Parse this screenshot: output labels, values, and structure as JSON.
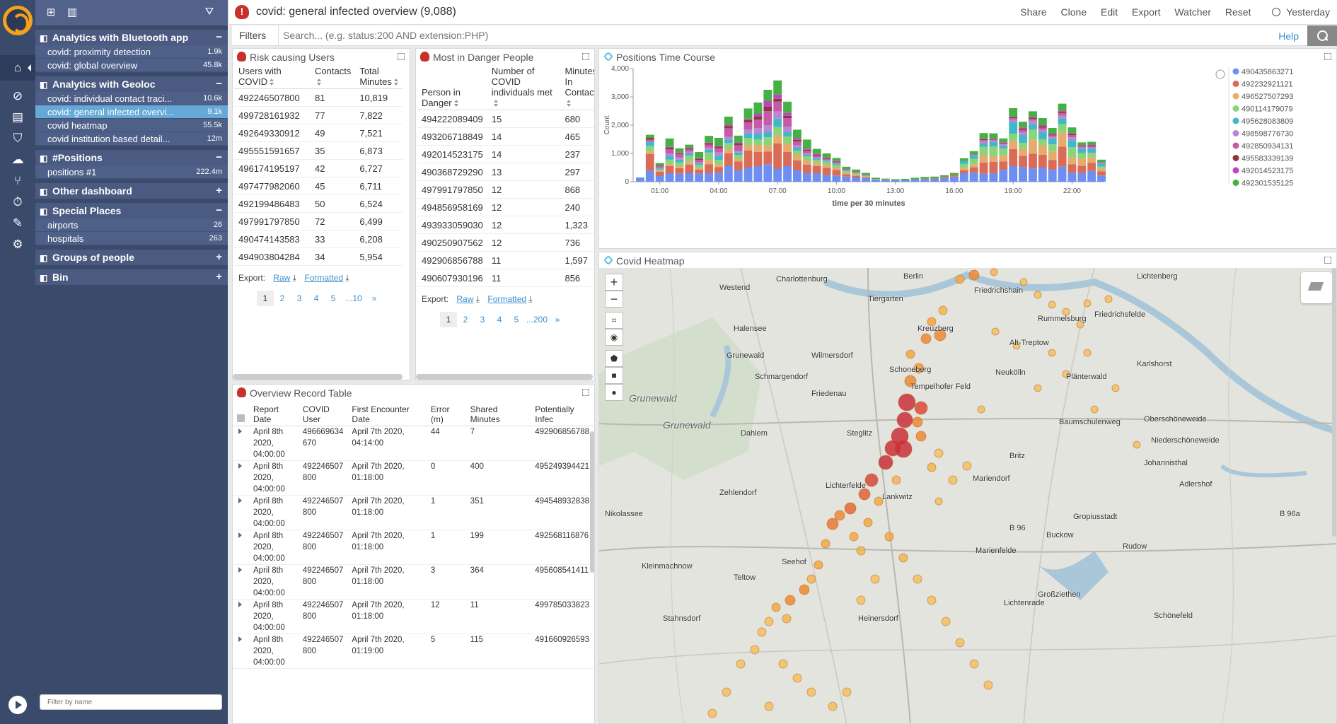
{
  "topbar": {
    "title": "covid: general infected overview (9,088)",
    "actions": [
      "Share",
      "Clone",
      "Edit",
      "Export",
      "Watcher",
      "Reset"
    ],
    "time": "Yesterday"
  },
  "filterbar": {
    "label": "Filters",
    "placeholder": "Search... (e.g. status:200 AND extension:PHP)",
    "help": "Help"
  },
  "sidebar": {
    "filter_placeholder": "Filter by name",
    "groups": [
      {
        "title": "Analytics with Bluetooth app",
        "toggle": "−",
        "items": [
          {
            "label": "covid: proximity detection",
            "count": "1.9k"
          },
          {
            "label": "covid: global overview",
            "count": "45.8k"
          }
        ]
      },
      {
        "title": "Analytics with Geoloc",
        "toggle": "−",
        "items": [
          {
            "label": "covid: individual contact traci...",
            "count": "10.6k"
          },
          {
            "label": "covid: general infected overvi...",
            "count": "9.1k"
          },
          {
            "label": "covid heatmap",
            "count": "55.5k"
          },
          {
            "label": "covid institution based detail...",
            "count": "12m"
          }
        ]
      },
      {
        "title": "#Positions",
        "toggle": "−",
        "items": [
          {
            "label": "positions #1",
            "count": "222.4m"
          }
        ]
      },
      {
        "title": "Other dashboard",
        "toggle": "+",
        "items": []
      },
      {
        "title": "Special Places",
        "toggle": "−",
        "items": [
          {
            "label": "airports",
            "count": "26"
          },
          {
            "label": "hospitals",
            "count": "263"
          }
        ]
      },
      {
        "title": "Groups of people",
        "toggle": "+",
        "items": []
      },
      {
        "title": "Bin",
        "toggle": "+",
        "items": []
      }
    ]
  },
  "risk_users": {
    "title": "Risk causing Users",
    "headers": [
      "Users with COVID",
      "Contacts",
      "Total Minutes"
    ],
    "rows": [
      [
        "492246507800",
        "81",
        "10,819"
      ],
      [
        "499728161932",
        "77",
        "7,822"
      ],
      [
        "492649330912",
        "49",
        "7,521"
      ],
      [
        "495551591657",
        "35",
        "6,873"
      ],
      [
        "496174195197",
        "42",
        "6,727"
      ],
      [
        "497477982060",
        "45",
        "6,711"
      ],
      [
        "492199486483",
        "50",
        "6,524"
      ],
      [
        "497991797850",
        "72",
        "6,499"
      ],
      [
        "490474143583",
        "33",
        "6,208"
      ],
      [
        "494903804284",
        "34",
        "5,954"
      ]
    ],
    "export_label": "Export:",
    "raw": "Raw",
    "formatted": "Formatted",
    "pages": [
      "1",
      "2",
      "3",
      "4",
      "5",
      "...10",
      "»"
    ]
  },
  "danger_people": {
    "title": "Most in Danger People",
    "headers": [
      "Person in Danger",
      "Number of COVID individuals met",
      "Minutes In Contact"
    ],
    "rows": [
      [
        "494222089409",
        "15",
        "680"
      ],
      [
        "493206718849",
        "14",
        "465"
      ],
      [
        "492014523175",
        "14",
        "237"
      ],
      [
        "490368729290",
        "13",
        "297"
      ],
      [
        "497991797850",
        "12",
        "868"
      ],
      [
        "494856958169",
        "12",
        "240"
      ],
      [
        "493933059030",
        "12",
        "1,323"
      ],
      [
        "490250907562",
        "12",
        "736"
      ],
      [
        "492906856788",
        "11",
        "1,597"
      ],
      [
        "490607930196",
        "11",
        "856"
      ]
    ],
    "export_label": "Export:",
    "raw": "Raw",
    "formatted": "Formatted",
    "pages": [
      "1",
      "2",
      "3",
      "4",
      "5",
      "...200",
      "»"
    ]
  },
  "record_table": {
    "title": "Overview Record Table",
    "headers": [
      "Report Date",
      "COVID User",
      "First Encounter Date",
      "Error (m)",
      "Shared Minutes",
      "Potentially Infec"
    ],
    "rows": [
      [
        "April 8th 2020, 04:00:00",
        "496669634 670",
        "April 7th 2020, 04:14:00",
        "44",
        "7",
        "492906856788"
      ],
      [
        "April 8th 2020, 04:00:00",
        "492246507 800",
        "April 7th 2020, 01:18:00",
        "0",
        "400",
        "495249394421"
      ],
      [
        "April 8th 2020, 04:00:00",
        "492246507 800",
        "April 7th 2020, 01:18:00",
        "1",
        "351",
        "494548932838"
      ],
      [
        "April 8th 2020, 04:00:00",
        "492246507 800",
        "April 7th 2020, 01:18:00",
        "1",
        "199",
        "492568116876"
      ],
      [
        "April 8th 2020, 04:00:00",
        "492246507 800",
        "April 7th 2020, 01:18:00",
        "3",
        "364",
        "495608541411"
      ],
      [
        "April 8th 2020, 04:00:00",
        "492246507 800",
        "April 7th 2020, 01:18:00",
        "12",
        "11",
        "499785033823"
      ],
      [
        "April 8th 2020, 04:00:00",
        "492246507 800",
        "April 7th 2020, 01:19:00",
        "5",
        "115",
        "491660926593"
      ]
    ]
  },
  "time_course": {
    "title": "Positions Time Course"
  },
  "heatmap": {
    "title": "Covid Heatmap",
    "labels": [
      "Charlottenburg",
      "Berlin",
      "Westend",
      "Tiergarten",
      "Friedrichshain",
      "Rummelsburg",
      "Friedrichsfelde",
      "Halensee",
      "Kreuzberg",
      "Alt-Treptow",
      "Grunewald",
      "Wilmersdorf",
      "Schmargendorf",
      "Schoneberg",
      "Neukölln",
      "Plänterwald",
      "Karlshorst",
      "Friedenau",
      "Tempelhofer Feld",
      "Oberschöneweide",
      "Baumschulenweg",
      "Dahlem",
      "Steglitz",
      "Niederschöneweide",
      "Johannisthal",
      "Britz",
      "Mariendorf",
      "Zehlendorf",
      "Lichterfelde",
      "Adlershof",
      "Nikolassee",
      "Lankwitz",
      "Gropiusstadt",
      "B 96",
      "B 96a",
      "Buckow",
      "Kleinmachnow",
      "Marienfelde",
      "Rudow",
      "Seehof",
      "Teltow",
      "Großziethen",
      "Lichtenrade",
      "Stahnsdorf",
      "Schönefeld",
      "Heinersdorf",
      "Lichtenberg"
    ],
    "map_big": [
      "Grunewald",
      "Grunewald"
    ]
  },
  "chart_data": {
    "type": "bar",
    "stacked": true,
    "xlabel": "time per 30 minutes",
    "ylabel": "Count",
    "ylim": [
      0,
      4000
    ],
    "yticks": [
      "0",
      "1,000",
      "2,000",
      "3,000",
      "4,000"
    ],
    "xticks": [
      "01:00",
      "04:00",
      "07:00",
      "10:00",
      "13:00",
      "16:00",
      "19:00",
      "22:00"
    ],
    "x": [
      "00:00",
      "00:30",
      "01:00",
      "01:30",
      "02:00",
      "02:30",
      "03:00",
      "03:30",
      "04:00",
      "04:30",
      "05:00",
      "05:30",
      "06:00",
      "06:30",
      "07:00",
      "07:30",
      "08:00",
      "08:30",
      "09:00",
      "09:30",
      "10:00",
      "10:30",
      "11:00",
      "11:30",
      "12:00",
      "12:30",
      "13:00",
      "13:30",
      "14:00",
      "14:30",
      "15:00",
      "15:30",
      "16:00",
      "16:30",
      "17:00",
      "17:30",
      "18:00",
      "18:30",
      "19:00",
      "19:30",
      "20:00",
      "20:30",
      "21:00",
      "21:30",
      "22:00",
      "22:30",
      "23:00",
      "23:30"
    ],
    "colors": [
      "#6e8ef2",
      "#d96b57",
      "#e6ab6f",
      "#8ad47a",
      "#40b8c9",
      "#b988d2",
      "#c55aa8",
      "#8a3a3a",
      "#bd46c0",
      "#45b043"
    ],
    "series": [
      {
        "name": "490435863271",
        "values": [
          150,
          380,
          200,
          300,
          280,
          300,
          290,
          300,
          320,
          550,
          400,
          500,
          550,
          620,
          450,
          550,
          400,
          300,
          300,
          240,
          220,
          180,
          150,
          130,
          80,
          70,
          60,
          60,
          80,
          90,
          100,
          130,
          180,
          300,
          330,
          280,
          300,
          420,
          550,
          520,
          470,
          500,
          420,
          540,
          320,
          310,
          380,
          220
        ]
      },
      {
        "name": "492232921121",
        "values": [
          0,
          600,
          150,
          250,
          200,
          300,
          140,
          320,
          200,
          450,
          320,
          600,
          500,
          450,
          900,
          500,
          350,
          300,
          250,
          250,
          200,
          80,
          60,
          30,
          10,
          10,
          0,
          0,
          0,
          20,
          20,
          40,
          60,
          100,
          180,
          400,
          400,
          300,
          600,
          400,
          520,
          450,
          350,
          700,
          300,
          250,
          290,
          150
        ]
      },
      {
        "name": "496527507293",
        "values": [
          0,
          100,
          30,
          80,
          70,
          120,
          60,
          150,
          100,
          150,
          80,
          200,
          250,
          200,
          300,
          300,
          200,
          150,
          120,
          100,
          80,
          60,
          50,
          30,
          0,
          0,
          0,
          0,
          0,
          0,
          0,
          0,
          0,
          80,
          100,
          250,
          200,
          200,
          300,
          250,
          500,
          350,
          300,
          500,
          250,
          250,
          200,
          100
        ]
      },
      {
        "name": "490114179079",
        "values": [
          0,
          180,
          50,
          150,
          130,
          200,
          100,
          260,
          150,
          220,
          150,
          250,
          200,
          300,
          280,
          250,
          150,
          150,
          100,
          120,
          100,
          60,
          40,
          20,
          10,
          0,
          0,
          0,
          0,
          0,
          0,
          0,
          0,
          150,
          200,
          300,
          350,
          250,
          250,
          200,
          350,
          200,
          250,
          300,
          350,
          200,
          150,
          70
        ]
      },
      {
        "name": "495628083809",
        "values": [
          0,
          150,
          30,
          120,
          100,
          80,
          50,
          100,
          150,
          120,
          80,
          150,
          200,
          180,
          300,
          150,
          100,
          50,
          50,
          30,
          40,
          20,
          20,
          20,
          0,
          0,
          0,
          0,
          0,
          0,
          0,
          0,
          0,
          100,
          100,
          120,
          150,
          100,
          420,
          280,
          200,
          250,
          200,
          200,
          250,
          150,
          130,
          100
        ]
      },
      {
        "name": "498598776730",
        "values": [
          0,
          0,
          30,
          100,
          80,
          60,
          40,
          80,
          120,
          100,
          60,
          150,
          200,
          250,
          250,
          200,
          100,
          60,
          40,
          30,
          20,
          10,
          10,
          0,
          0,
          0,
          0,
          0,
          0,
          0,
          0,
          0,
          0,
          0,
          30,
          80,
          60,
          50,
          80,
          100,
          120,
          80,
          70,
          100,
          100,
          50,
          60,
          20
        ]
      },
      {
        "name": "492850934131",
        "values": [
          0,
          80,
          60,
          150,
          120,
          80,
          90,
          100,
          150,
          300,
          200,
          250,
          300,
          500,
          350,
          300,
          120,
          80,
          60,
          40,
          30,
          20,
          10,
          10,
          0,
          0,
          0,
          0,
          0,
          0,
          0,
          0,
          0,
          0,
          20,
          40,
          30,
          30,
          50,
          80,
          60,
          80,
          50,
          80,
          80,
          40,
          50,
          20
        ]
      },
      {
        "name": "495583339139",
        "values": [
          0,
          60,
          20,
          50,
          30,
          40,
          40,
          40,
          50,
          80,
          70,
          80,
          100,
          150,
          100,
          80,
          60,
          40,
          30,
          20,
          20,
          10,
          10,
          10,
          0,
          0,
          0,
          0,
          0,
          0,
          0,
          0,
          0,
          0,
          0,
          30,
          20,
          20,
          30,
          50,
          40,
          50,
          30,
          50,
          40,
          20,
          30,
          10
        ]
      },
      {
        "name": "492014523175",
        "values": [
          0,
          0,
          0,
          30,
          20,
          30,
          20,
          30,
          20,
          50,
          30,
          50,
          100,
          200,
          150,
          100,
          60,
          40,
          30,
          20,
          20,
          10,
          10,
          10,
          0,
          0,
          0,
          0,
          0,
          0,
          0,
          0,
          0,
          0,
          0,
          20,
          20,
          20,
          20,
          40,
          30,
          40,
          30,
          40,
          30,
          20,
          20,
          10
        ]
      },
      {
        "name": "492301535125",
        "values": [
          0,
          110,
          90,
          300,
          150,
          100,
          220,
          240,
          290,
          280,
          240,
          360,
          400,
          400,
          500,
          400,
          300,
          320,
          180,
          150,
          110,
          80,
          70,
          50,
          40,
          30,
          30,
          40,
          60,
          60,
          60,
          60,
          70,
          100,
          120,
          200,
          180,
          140,
          300,
          200,
          200,
          250,
          200,
          250,
          200,
          100,
          100,
          80
        ]
      }
    ],
    "legend_position": "right"
  }
}
